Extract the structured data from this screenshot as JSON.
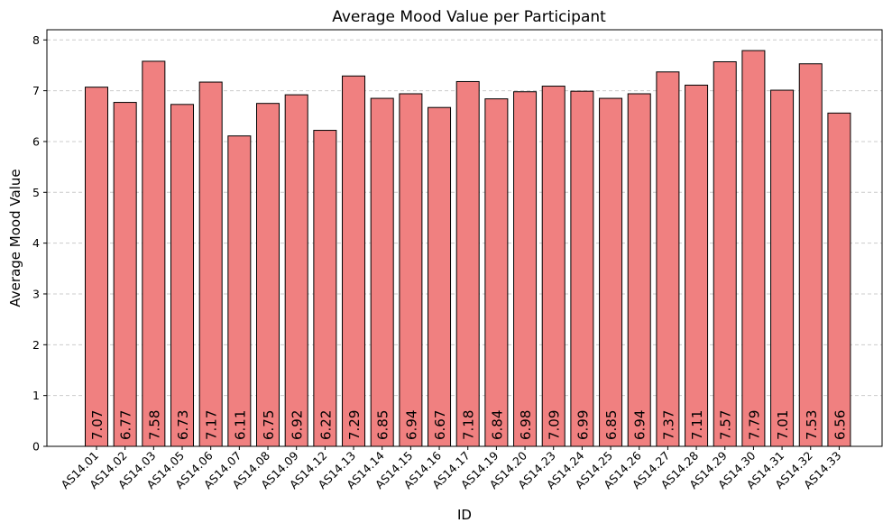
{
  "chart_data": {
    "type": "bar",
    "title": "Average Mood Value per Participant",
    "xlabel": "ID",
    "ylabel": "Average Mood Value",
    "ylim": [
      0,
      8.2
    ],
    "yticks": [
      0,
      1,
      2,
      3,
      4,
      5,
      6,
      7,
      8
    ],
    "grid": "y-dashed",
    "legend": "none",
    "bar_color": "#f08080",
    "edge_color": "#000000",
    "grid_color": "#cccccc",
    "categories": [
      "AS14.01",
      "AS14.02",
      "AS14.03",
      "AS14.05",
      "AS14.06",
      "AS14.07",
      "AS14.08",
      "AS14.09",
      "AS14.12",
      "AS14.13",
      "AS14.14",
      "AS14.15",
      "AS14.16",
      "AS14.17",
      "AS14.19",
      "AS14.20",
      "AS14.23",
      "AS14.24",
      "AS14.25",
      "AS14.26",
      "AS14.27",
      "AS14.28",
      "AS14.29",
      "AS14.30",
      "AS14.31",
      "AS14.32",
      "AS14.33"
    ],
    "values": [
      7.07,
      6.77,
      7.58,
      6.73,
      7.17,
      6.11,
      6.75,
      6.92,
      6.22,
      7.29,
      6.85,
      6.94,
      6.67,
      7.18,
      6.84,
      6.98,
      7.09,
      6.99,
      6.85,
      6.94,
      7.37,
      7.11,
      7.57,
      7.79,
      7.01,
      7.53,
      6.56
    ],
    "data_labels": [
      "7.07",
      "6.77",
      "7.58",
      "6.73",
      "7.17",
      "6.11",
      "6.75",
      "6.92",
      "6.22",
      "7.29",
      "6.85",
      "6.94",
      "6.67",
      "7.18",
      "6.84",
      "6.98",
      "7.09",
      "6.99",
      "6.85",
      "6.94",
      "7.37",
      "7.11",
      "7.57",
      "7.79",
      "7.01",
      "7.53",
      "6.56"
    ]
  }
}
